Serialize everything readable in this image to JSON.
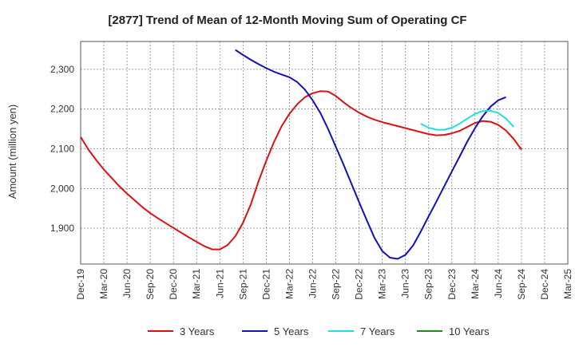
{
  "chart_data": {
    "type": "line",
    "title": "[2877]  Trend of Mean of 12-Month Moving Sum of Operating CF",
    "xlabel": "",
    "ylabel": "Amount (million yen)",
    "ylim": [
      1810,
      2370
    ],
    "yticks": [
      1900,
      2000,
      2100,
      2200,
      2300
    ],
    "ytick_labels": [
      "1,900",
      "2,000",
      "2,100",
      "2,200",
      "2,300"
    ],
    "categories": [
      "Dec-19",
      "Mar-20",
      "Jun-20",
      "Sep-20",
      "Dec-20",
      "Mar-21",
      "Jun-21",
      "Sep-21",
      "Dec-21",
      "Mar-22",
      "Jun-22",
      "Sep-22",
      "Dec-22",
      "Mar-23",
      "Jun-23",
      "Sep-23",
      "Dec-23",
      "Mar-24",
      "Jun-24",
      "Sep-24",
      "Dec-24",
      "Mar-25"
    ],
    "series": [
      {
        "name": "3 Years",
        "color": "#dd1111",
        "points": [
          [
            0,
            2130
          ],
          [
            1,
            2098
          ],
          [
            2,
            2072
          ],
          [
            3,
            2048
          ],
          [
            4,
            2027
          ],
          [
            5,
            2006
          ],
          [
            6,
            1987
          ],
          [
            7,
            1970
          ],
          [
            8,
            1953
          ],
          [
            9,
            1938
          ],
          [
            10,
            1925
          ],
          [
            11,
            1913
          ],
          [
            12,
            1901
          ],
          [
            13,
            1889
          ],
          [
            14,
            1877
          ],
          [
            15,
            1866
          ],
          [
            16,
            1855
          ],
          [
            17,
            1847
          ],
          [
            18,
            1847
          ],
          [
            19,
            1858
          ],
          [
            20,
            1880
          ],
          [
            21,
            1914
          ],
          [
            22,
            1960
          ],
          [
            23,
            2018
          ],
          [
            24,
            2070
          ],
          [
            25,
            2117
          ],
          [
            26,
            2157
          ],
          [
            27,
            2188
          ],
          [
            28,
            2212
          ],
          [
            29,
            2230
          ],
          [
            30,
            2240
          ],
          [
            31,
            2245
          ],
          [
            32,
            2244
          ],
          [
            33,
            2233
          ],
          [
            34,
            2217
          ],
          [
            35,
            2203
          ],
          [
            36,
            2191
          ],
          [
            37,
            2181
          ],
          [
            38,
            2173
          ],
          [
            39,
            2167
          ],
          [
            40,
            2162
          ],
          [
            41,
            2157
          ],
          [
            42,
            2152
          ],
          [
            43,
            2147
          ],
          [
            44,
            2142
          ],
          [
            45,
            2137
          ],
          [
            46,
            2134
          ],
          [
            47,
            2135
          ],
          [
            48,
            2139
          ],
          [
            49,
            2145
          ],
          [
            50,
            2155
          ],
          [
            51,
            2165
          ],
          [
            52,
            2170
          ],
          [
            53,
            2168
          ],
          [
            54,
            2160
          ],
          [
            55,
            2146
          ],
          [
            56,
            2125
          ],
          [
            57,
            2098
          ]
        ]
      },
      {
        "name": "5 Years",
        "color": "#1111bb",
        "points": [
          [
            20,
            2349
          ],
          [
            21,
            2336
          ],
          [
            22,
            2324
          ],
          [
            23,
            2313
          ],
          [
            24,
            2303
          ],
          [
            25,
            2294
          ],
          [
            26,
            2287
          ],
          [
            27,
            2280
          ],
          [
            28,
            2268
          ],
          [
            29,
            2249
          ],
          [
            30,
            2222
          ],
          [
            31,
            2190
          ],
          [
            32,
            2150
          ],
          [
            33,
            2105
          ],
          [
            34,
            2060
          ],
          [
            35,
            2013
          ],
          [
            36,
            1966
          ],
          [
            37,
            1920
          ],
          [
            38,
            1876
          ],
          [
            39,
            1843
          ],
          [
            40,
            1826
          ],
          [
            41,
            1823
          ],
          [
            42,
            1833
          ],
          [
            43,
            1857
          ],
          [
            44,
            1892
          ],
          [
            45,
            1930
          ],
          [
            46,
            1967
          ],
          [
            47,
            2005
          ],
          [
            48,
            2043
          ],
          [
            49,
            2080
          ],
          [
            50,
            2118
          ],
          [
            51,
            2152
          ],
          [
            52,
            2182
          ],
          [
            53,
            2206
          ],
          [
            54,
            2222
          ],
          [
            55,
            2230
          ]
        ]
      },
      {
        "name": "7 Years",
        "color": "#22dddd",
        "points": [
          [
            44,
            2163
          ],
          [
            45,
            2153
          ],
          [
            46,
            2148
          ],
          [
            47,
            2148
          ],
          [
            48,
            2153
          ],
          [
            49,
            2163
          ],
          [
            50,
            2176
          ],
          [
            51,
            2188
          ],
          [
            52,
            2195
          ],
          [
            53,
            2196
          ],
          [
            54,
            2190
          ],
          [
            55,
            2176
          ],
          [
            56,
            2155
          ]
        ]
      },
      {
        "name": "10 Years",
        "color": "#228822",
        "points": []
      }
    ],
    "legend": [
      "3 Years",
      "5 Years",
      "7 Years",
      "10 Years"
    ],
    "legend_position": "bottom",
    "grid": true
  }
}
